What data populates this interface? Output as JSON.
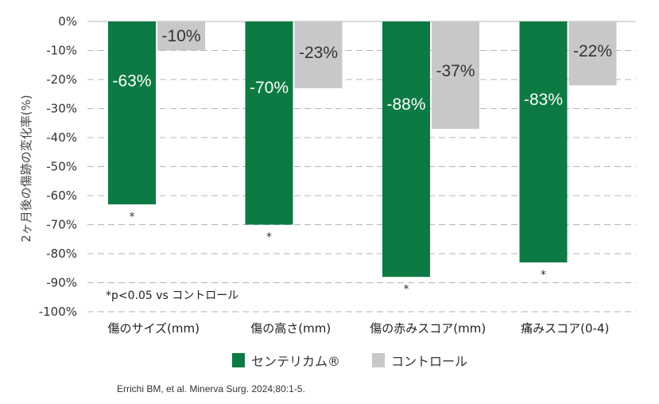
{
  "chart_data": {
    "type": "bar",
    "categories": [
      "傷のサイズ(mm)",
      "傷の高さ(mm)",
      "傷の赤みスコア(mm)",
      "痛みスコア(0-4)"
    ],
    "series": [
      {
        "name": "センテリカム®",
        "values": [
          -63,
          -70,
          -88,
          -83
        ],
        "labels": [
          "-63%",
          "-70%",
          "-88%",
          "-83%"
        ],
        "color": "#0d7a43"
      },
      {
        "name": "コントロール",
        "values": [
          -10,
          -23,
          -37,
          -22
        ],
        "labels": [
          "-10%",
          "-23%",
          "-37%",
          "-22%"
        ],
        "color": "#c8c8c8"
      }
    ],
    "significance_marks": [
      "*",
      "*",
      "*",
      "*"
    ],
    "ylabel": "2ヶ月後の傷跡の変化率(%)",
    "ylim": [
      -100,
      0
    ],
    "yticks": [
      0,
      -10,
      -20,
      -30,
      -40,
      -50,
      -60,
      -70,
      -80,
      -90,
      -100
    ],
    "ytick_labels": [
      "0%",
      "-10%",
      "-20%",
      "-30%",
      "-40%",
      "-50%",
      "-60%",
      "-70%",
      "-80%",
      "-90%",
      "-100%"
    ],
    "grid": true,
    "legend_position": "bottom",
    "note": "*p<0.05 vs コントロール"
  },
  "citation": "Errichi BM, et al. Minerva Surg. 2024;80:1-5."
}
